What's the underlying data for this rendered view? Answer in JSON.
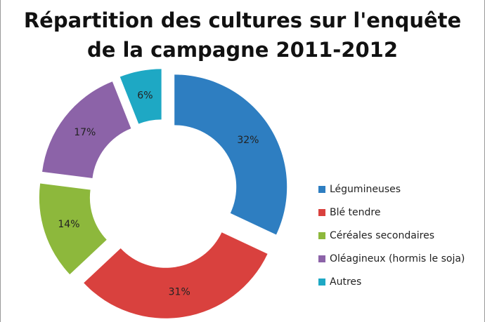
{
  "chart_data": {
    "type": "donut",
    "title": "Répartition des cultures sur l'enquête de la campagne 2011-2012",
    "categories": [
      "Légumineuses",
      "Blé tendre",
      "Céréales secondaires",
      "Oléagineux (hormis le soja)",
      "Autres"
    ],
    "values": [
      32,
      31,
      14,
      17,
      6
    ],
    "value_labels": [
      "32%",
      "31%",
      "14%",
      "17%",
      "6%"
    ],
    "colors": [
      "#2e7ec1",
      "#d9413e",
      "#8db83c",
      "#8c63a8",
      "#1ea8c4"
    ],
    "legend": "right"
  }
}
